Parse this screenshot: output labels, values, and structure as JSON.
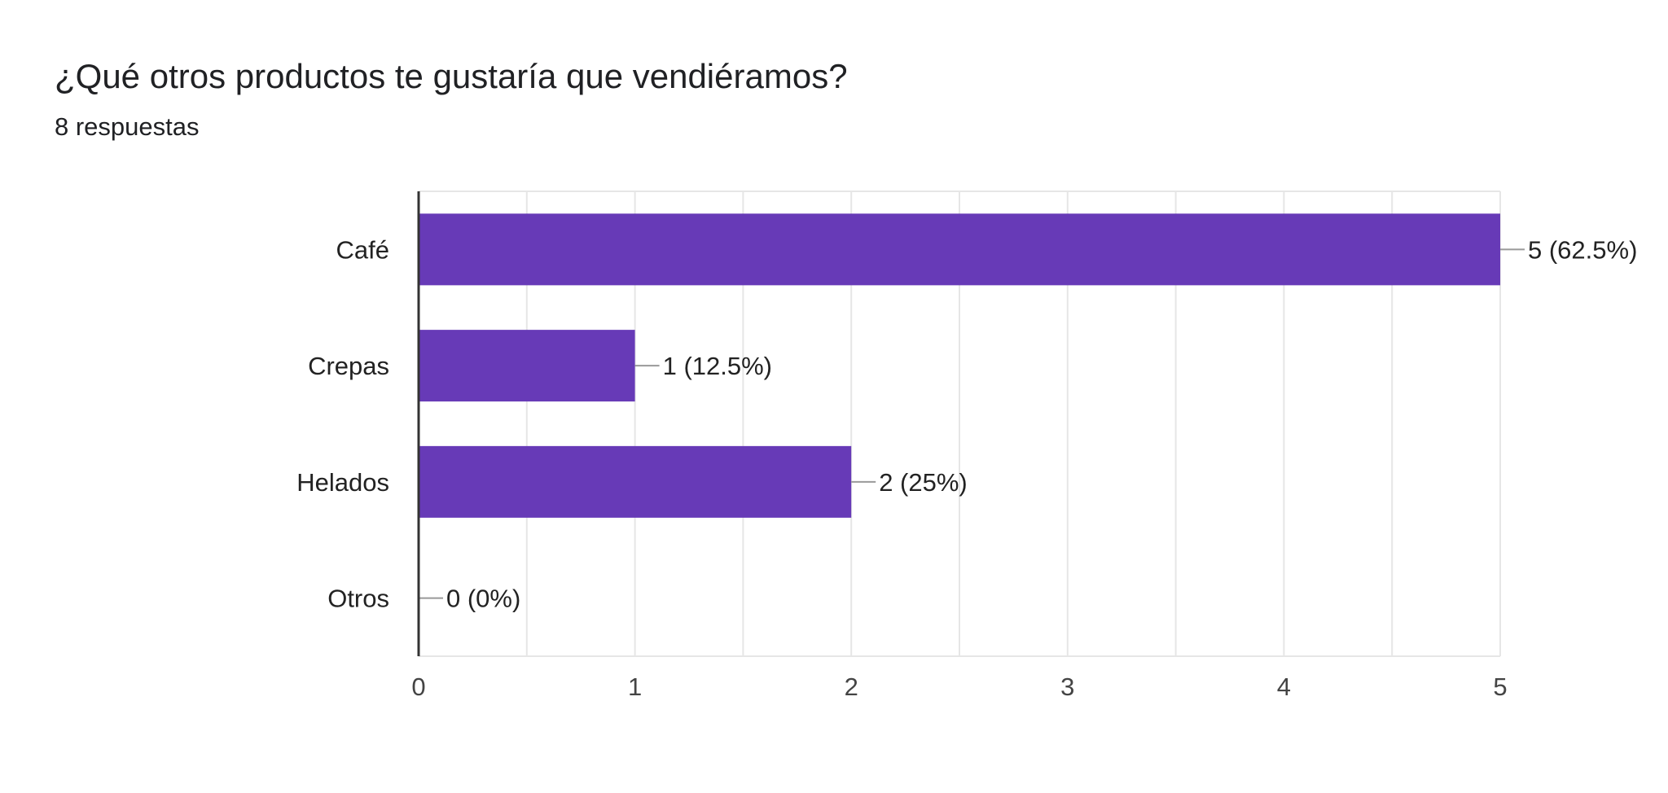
{
  "question": {
    "title": "¿Qué otros productos te gustaría que vendiéramos?",
    "responses_text": "8 respuestas"
  },
  "colors": {
    "bar": "#673ab7",
    "grid": "#e6e6e6",
    "axis": "#333333",
    "leader": "#999999"
  },
  "chart_data": {
    "type": "bar",
    "orientation": "horizontal",
    "categories": [
      "Café",
      "Crepas",
      "Helados",
      "Otros"
    ],
    "values": [
      5,
      1,
      2,
      0
    ],
    "labels": [
      "5 (62.5%)",
      "1 (12.5%)",
      "2 (25%)",
      "0 (0%)"
    ],
    "title": "",
    "xlabel": "",
    "ylabel": "",
    "xlim": [
      0,
      5
    ],
    "xticks": [
      0,
      1,
      2,
      3,
      4,
      5
    ],
    "grid": true,
    "legend": "none"
  }
}
